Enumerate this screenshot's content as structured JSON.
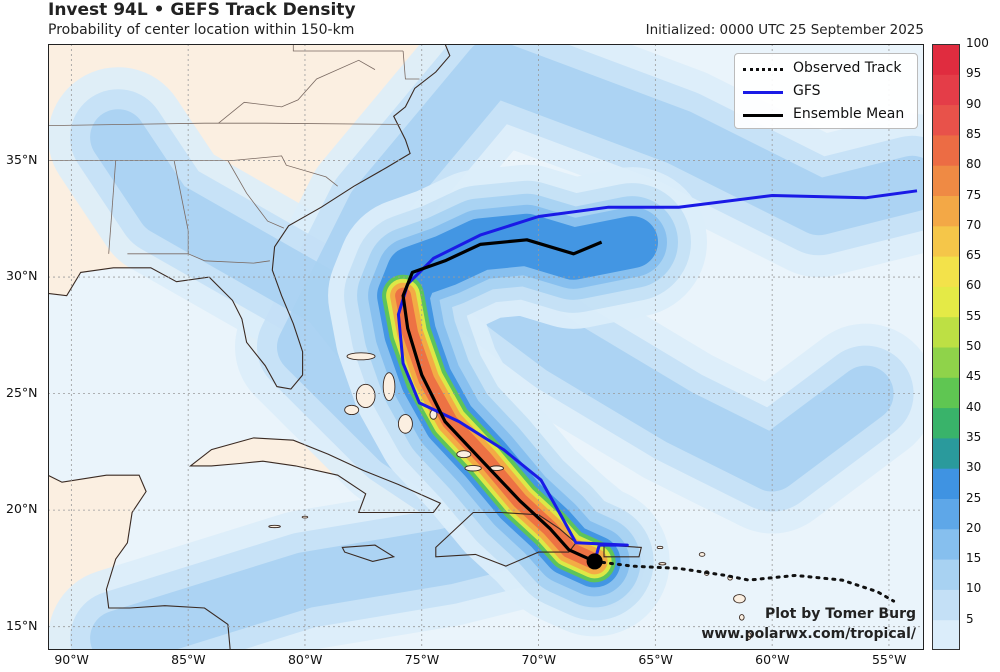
{
  "header": {
    "title": "Invest 94L • GEFS Track Density",
    "subtitle": "Probability of center location within 150-km",
    "initialized": "Initialized: 0000 UTC 25 September 2025"
  },
  "map": {
    "lon_range": [
      -91,
      -53.5
    ],
    "lat_range": [
      14,
      40
    ],
    "lon_ticks": [
      {
        "value": -90,
        "label": "90°W"
      },
      {
        "value": -85,
        "label": "85°W"
      },
      {
        "value": -80,
        "label": "80°W"
      },
      {
        "value": -75,
        "label": "75°W"
      },
      {
        "value": -70,
        "label": "70°W"
      },
      {
        "value": -65,
        "label": "65°W"
      },
      {
        "value": -60,
        "label": "60°W"
      },
      {
        "value": -55,
        "label": "55°W"
      }
    ],
    "lat_ticks": [
      {
        "value": 15,
        "label": "15°N"
      },
      {
        "value": 20,
        "label": "20°N"
      },
      {
        "value": 25,
        "label": "25°N"
      },
      {
        "value": 30,
        "label": "30°N"
      },
      {
        "value": 35,
        "label": "35°N"
      }
    ],
    "colors": {
      "ocean": "#eaf4fb",
      "land": "#fbefe1",
      "coast": "#3a2a22",
      "grid": "#9a9a9a",
      "observed": "#111111",
      "gfs": "#1a1ae6",
      "mean": "#000000"
    }
  },
  "colorbar": {
    "min": 0,
    "max": 100,
    "step": 5,
    "labels": [
      "5",
      "10",
      "15",
      "20",
      "25",
      "30",
      "35",
      "40",
      "45",
      "50",
      "55",
      "60",
      "65",
      "70",
      "75",
      "80",
      "85",
      "90",
      "95",
      "100"
    ],
    "colors": [
      "#dbedfa",
      "#c4e0f6",
      "#a8d2f2",
      "#86bfee",
      "#5ea7e8",
      "#3f93e2",
      "#2a9a9c",
      "#39b36a",
      "#5fc652",
      "#8fd34a",
      "#bde044",
      "#e4ea46",
      "#f3e24a",
      "#f5c649",
      "#f3a846",
      "#ef8a44",
      "#ec6c44",
      "#e8524a",
      "#e43d48",
      "#e02c3f"
    ]
  },
  "legend": {
    "items": [
      {
        "label": "Observed Track",
        "style": "dotted",
        "color": "#111111"
      },
      {
        "label": "GFS",
        "style": "solid",
        "color": "#1a1ae6"
      },
      {
        "label": "Ensemble Mean",
        "style": "solid",
        "color": "#000000"
      }
    ]
  },
  "tracks": {
    "observed": [
      [
        -67.6,
        17.8
      ],
      [
        -66,
        17.6
      ],
      [
        -64,
        17.5
      ],
      [
        -62,
        17.2
      ],
      [
        -61,
        17.0
      ],
      [
        -59,
        17.2
      ],
      [
        -57,
        17.0
      ],
      [
        -55.5,
        16.5
      ],
      [
        -54.8,
        16.1
      ]
    ],
    "gfs": [
      [
        -67.6,
        17.8
      ],
      [
        -67.4,
        18.5
      ],
      [
        -66.2,
        18.5
      ],
      [
        -68.4,
        18.6
      ],
      [
        -69.0,
        19.7
      ],
      [
        -69.9,
        21.3
      ],
      [
        -71.5,
        22.6
      ],
      [
        -73.4,
        23.8
      ],
      [
        -75.1,
        24.6
      ],
      [
        -75.8,
        26.3
      ],
      [
        -76.0,
        28.4
      ],
      [
        -75.6,
        29.7
      ],
      [
        -74.5,
        30.8
      ],
      [
        -72.5,
        31.8
      ],
      [
        -70.0,
        32.6
      ],
      [
        -67.0,
        33.0
      ],
      [
        -64.0,
        33.0
      ],
      [
        -60.0,
        33.5
      ],
      [
        -56.0,
        33.4
      ],
      [
        -53.8,
        33.7
      ]
    ],
    "mean": [
      [
        -67.6,
        17.8
      ],
      [
        -68.7,
        18.3
      ],
      [
        -69.5,
        19.2
      ],
      [
        -70.8,
        20.4
      ],
      [
        -72.5,
        22.2
      ],
      [
        -74.0,
        23.8
      ],
      [
        -75.0,
        25.8
      ],
      [
        -75.6,
        27.8
      ],
      [
        -75.8,
        29.2
      ],
      [
        -75.4,
        30.2
      ],
      [
        -74.0,
        30.7
      ],
      [
        -72.5,
        31.4
      ],
      [
        -70.5,
        31.6
      ],
      [
        -68.5,
        31.0
      ],
      [
        -67.3,
        31.5
      ]
    ],
    "center": [
      -67.6,
      17.8
    ]
  },
  "density_core": [
    [
      -67.6,
      17.8
    ],
    [
      -68.7,
      18.3
    ],
    [
      -69.5,
      19.2
    ],
    [
      -70.8,
      20.4
    ],
    [
      -72.3,
      22.2
    ],
    [
      -73.8,
      23.8
    ],
    [
      -74.8,
      25.6
    ],
    [
      -75.5,
      27.6
    ],
    [
      -75.8,
      29.2
    ],
    [
      -75.4,
      30.2
    ],
    [
      -74.0,
      30.7
    ],
    [
      -72.5,
      31.4
    ],
    [
      -70.5,
      31.6
    ],
    [
      -68.5,
      31.0
    ],
    [
      -66.0,
      31.5
    ]
  ],
  "credit": {
    "line1": "Plot by Tomer Burg",
    "line2": "www.polarwx.com/tropical/"
  }
}
